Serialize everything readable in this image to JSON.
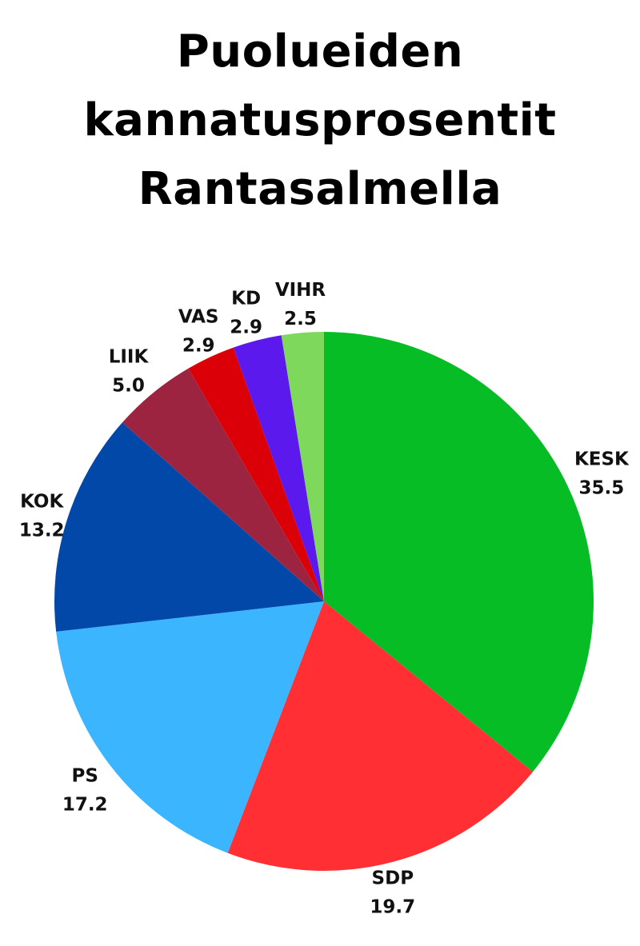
{
  "title_lines": [
    "Puolueiden",
    "kannatusprosentit",
    "Rantasalmella"
  ],
  "chart_data": {
    "type": "pie",
    "title": "Puolueiden kannatusprosentit Rantasalmella",
    "categories": [
      "KESK",
      "SDP",
      "PS",
      "KOK",
      "LIIK",
      "VAS",
      "KD",
      "VIHR"
    ],
    "values": [
      35.5,
      19.7,
      17.2,
      13.2,
      5.0,
      2.9,
      2.9,
      2.5
    ],
    "value_labels": [
      "35.5",
      "19.7",
      "17.2",
      "13.2",
      "5.0",
      "2.9",
      "2.9",
      "2.5"
    ],
    "colors": [
      "#07bd26",
      "#ff2f34",
      "#3cb5ff",
      "#0248a8",
      "#9d2440",
      "#db0007",
      "#5b19ee",
      "#7ed85b"
    ],
    "start": "12 o'clock",
    "direction": "clockwise",
    "legend": "none",
    "labels": "outside each slice"
  }
}
